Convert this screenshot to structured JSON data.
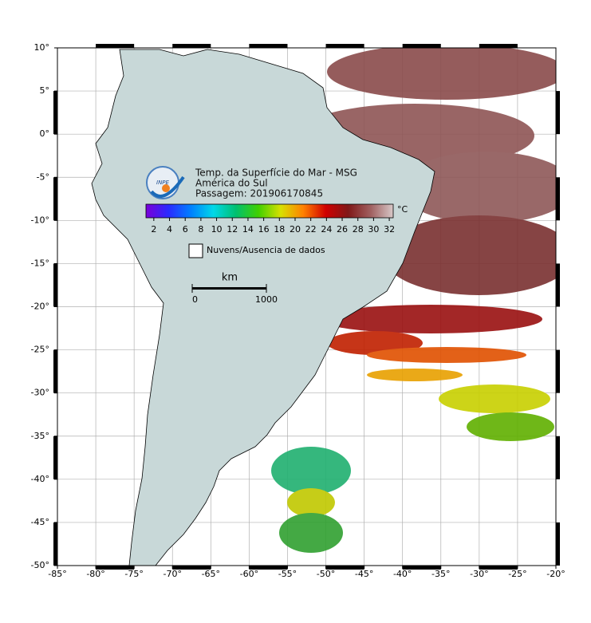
{
  "map": {
    "title_lines": [
      "Temp. da Superfície do Mar - MSG",
      "América do Sul",
      "Passagem: 201906170845"
    ],
    "logo_text": "INPE",
    "xlim": [
      -85,
      -20
    ],
    "ylim": [
      -50,
      10
    ],
    "xticks": [
      {
        "value": -85,
        "label": "-85°"
      },
      {
        "value": -80,
        "label": "-80°"
      },
      {
        "value": -75,
        "label": "-75°"
      },
      {
        "value": -70,
        "label": "-70°"
      },
      {
        "value": -65,
        "label": "-65°"
      },
      {
        "value": -60,
        "label": "-60°"
      },
      {
        "value": -55,
        "label": "-55°"
      },
      {
        "value": -50,
        "label": "-50°"
      },
      {
        "value": -45,
        "label": "-45°"
      },
      {
        "value": -40,
        "label": "-40°"
      },
      {
        "value": -35,
        "label": "-35°"
      },
      {
        "value": -30,
        "label": "-30°"
      },
      {
        "value": -25,
        "label": "-25°"
      },
      {
        "value": -20,
        "label": "-20°"
      }
    ],
    "yticks": [
      {
        "value": 10,
        "label": "10°"
      },
      {
        "value": 5,
        "label": "5°"
      },
      {
        "value": 0,
        "label": "0°"
      },
      {
        "value": -5,
        "label": "-5°"
      },
      {
        "value": -10,
        "label": "-10°"
      },
      {
        "value": -15,
        "label": "-15°"
      },
      {
        "value": -20,
        "label": "-20°"
      },
      {
        "value": -25,
        "label": "-25°"
      },
      {
        "value": -30,
        "label": "-30°"
      },
      {
        "value": -35,
        "label": "-35°"
      },
      {
        "value": -40,
        "label": "-40°"
      },
      {
        "value": -45,
        "label": "-45°"
      },
      {
        "value": -50,
        "label": "-50°"
      }
    ],
    "grid": true,
    "colorbar": {
      "unit": "°C",
      "clim": [
        1,
        32.5
      ],
      "ticks": [
        2,
        4,
        6,
        8,
        10,
        12,
        14,
        16,
        18,
        20,
        22,
        24,
        26,
        28,
        30,
        32
      ],
      "colors": [
        "#7a00d8",
        "#2a2aff",
        "#0080ff",
        "#00d8e8",
        "#00c070",
        "#40d000",
        "#d8e000",
        "#ff8000",
        "#d00000",
        "#801818",
        "#a06060",
        "#d8c8c8"
      ]
    },
    "legend": "Nuvens/Ausencia de dados",
    "scale": {
      "unit": "km",
      "ticks": [
        0,
        1000
      ]
    }
  }
}
